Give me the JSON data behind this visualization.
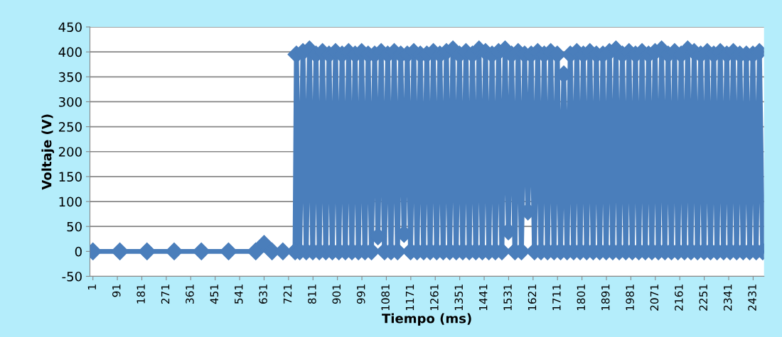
{
  "chart_data": {
    "type": "line",
    "xlabel": "Tiempo (ms)",
    "ylabel": "Voltaje (V)",
    "xlim": [
      -10,
      2471
    ],
    "ylim": [
      -50,
      450
    ],
    "xticks": [
      1,
      91,
      181,
      271,
      361,
      451,
      541,
      631,
      721,
      811,
      901,
      991,
      1081,
      1171,
      1261,
      1351,
      1441,
      1531,
      1621,
      1711,
      1801,
      1891,
      1981,
      2071,
      2161,
      2251,
      2341,
      2431
    ],
    "yticks": [
      -50,
      0,
      50,
      100,
      150,
      200,
      250,
      300,
      350,
      400,
      450
    ],
    "grid": "y",
    "marker": "diamond",
    "line_style": "solid",
    "series": [
      {
        "color": "#4a7ebb",
        "x": [
          1,
          100,
          200,
          300,
          400,
          500,
          600,
          631,
          660,
          700,
          745,
          750,
          762,
          774,
          786,
          798,
          810,
          822,
          834,
          846,
          858,
          870,
          882,
          894,
          906,
          918,
          930,
          942,
          954,
          966,
          978,
          990,
          1002,
          1014,
          1026,
          1038,
          1050,
          1062,
          1074,
          1086,
          1098,
          1110,
          1122,
          1134,
          1146,
          1158,
          1170,
          1182,
          1194,
          1206,
          1218,
          1230,
          1242,
          1254,
          1266,
          1278,
          1290,
          1302,
          1314,
          1326,
          1338,
          1350,
          1362,
          1374,
          1386,
          1398,
          1410,
          1422,
          1434,
          1446,
          1458,
          1470,
          1482,
          1494,
          1506,
          1518,
          1530,
          1542,
          1554,
          1566,
          1578,
          1590,
          1602,
          1614,
          1626,
          1638,
          1650,
          1662,
          1674,
          1686,
          1698,
          1710,
          1722,
          1734,
          1746,
          1758,
          1770,
          1782,
          1794,
          1806,
          1818,
          1830,
          1842,
          1854,
          1866,
          1878,
          1890,
          1902,
          1914,
          1926,
          1938,
          1950,
          1962,
          1974,
          1986,
          1998,
          2010,
          2022,
          2034,
          2046,
          2058,
          2070,
          2082,
          2094,
          2106,
          2118,
          2130,
          2142,
          2154,
          2166,
          2178,
          2190,
          2202,
          2214,
          2226,
          2238,
          2250,
          2262,
          2274,
          2286,
          2298,
          2310,
          2322,
          2334,
          2346,
          2358,
          2370,
          2382,
          2394,
          2406,
          2418,
          2430,
          2442,
          2454,
          2466
        ],
        "values": [
          0,
          0,
          0,
          0,
          0,
          0,
          0,
          15,
          0,
          0,
          0,
          395,
          0,
          400,
          0,
          405,
          0,
          395,
          0,
          400,
          0,
          395,
          0,
          400,
          0,
          395,
          0,
          400,
          0,
          395,
          0,
          400,
          0,
          395,
          0,
          395,
          30,
          400,
          0,
          395,
          0,
          400,
          0,
          395,
          35,
          395,
          0,
          400,
          0,
          395,
          0,
          395,
          0,
          400,
          0,
          395,
          0,
          400,
          0,
          405,
          0,
          395,
          0,
          400,
          0,
          395,
          0,
          405,
          0,
          400,
          0,
          395,
          0,
          400,
          0,
          405,
          40,
          395,
          0,
          400,
          0,
          395,
          80,
          395,
          0,
          400,
          0,
          395,
          0,
          400,
          0,
          395,
          0,
          355,
          0,
          395,
          0,
          400,
          0,
          395,
          0,
          400,
          0,
          395,
          0,
          395,
          0,
          400,
          0,
          405,
          0,
          395,
          0,
          400,
          0,
          395,
          0,
          400,
          0,
          395,
          0,
          400,
          0,
          405,
          0,
          395,
          0,
          400,
          0,
          395,
          0,
          405,
          0,
          400,
          0,
          395,
          0,
          400,
          0,
          395,
          0,
          400,
          0,
          395,
          0,
          400,
          0,
          395,
          0,
          395,
          0,
          395,
          0,
          400,
          0
        ]
      }
    ]
  }
}
